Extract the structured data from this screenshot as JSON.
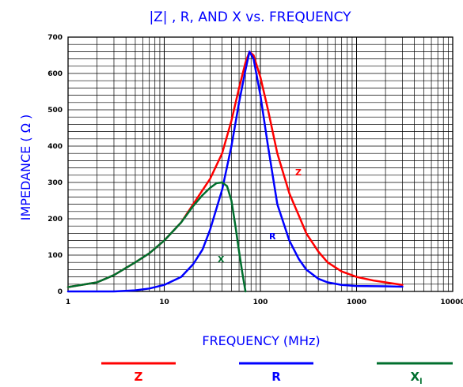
{
  "chart_data": {
    "type": "line",
    "title": "|Z| , R, AND X vs. FREQUENCY",
    "xlabel": "FREQUENCY (MHz)",
    "ylabel": "IMPEDANCE ( Ω )",
    "xscale": "log",
    "xlim": [
      1,
      10000
    ],
    "ylim": [
      0,
      700
    ],
    "x_ticks": [
      "1",
      "10",
      "100",
      "1000",
      "10000"
    ],
    "y_ticks": [
      "0",
      "100",
      "200",
      "300",
      "400",
      "500",
      "600",
      "700"
    ],
    "grid": true,
    "legend_position": "bottom",
    "series": [
      {
        "name": "Z",
        "color": "#ff0000",
        "points": [
          [
            1,
            12
          ],
          [
            2,
            25
          ],
          [
            3,
            45
          ],
          [
            5,
            80
          ],
          [
            7,
            105
          ],
          [
            10,
            140
          ],
          [
            15,
            190
          ],
          [
            20,
            240
          ],
          [
            30,
            310
          ],
          [
            40,
            380
          ],
          [
            50,
            470
          ],
          [
            60,
            560
          ],
          [
            70,
            630
          ],
          [
            77,
            660
          ],
          [
            85,
            650
          ],
          [
            100,
            590
          ],
          [
            120,
            500
          ],
          [
            150,
            380
          ],
          [
            200,
            270
          ],
          [
            250,
            210
          ],
          [
            300,
            160
          ],
          [
            400,
            110
          ],
          [
            500,
            80
          ],
          [
            700,
            55
          ],
          [
            1000,
            40
          ],
          [
            1500,
            30
          ],
          [
            2000,
            25
          ],
          [
            3000,
            18
          ]
        ]
      },
      {
        "name": "R",
        "color": "#0000ff",
        "points": [
          [
            1,
            0
          ],
          [
            3,
            0
          ],
          [
            5,
            3
          ],
          [
            7,
            8
          ],
          [
            10,
            18
          ],
          [
            15,
            40
          ],
          [
            20,
            75
          ],
          [
            25,
            115
          ],
          [
            30,
            170
          ],
          [
            40,
            280
          ],
          [
            50,
            400
          ],
          [
            60,
            520
          ],
          [
            70,
            610
          ],
          [
            77,
            660
          ],
          [
            85,
            640
          ],
          [
            100,
            540
          ],
          [
            120,
            400
          ],
          [
            150,
            240
          ],
          [
            200,
            140
          ],
          [
            250,
            90
          ],
          [
            300,
            60
          ],
          [
            400,
            35
          ],
          [
            500,
            25
          ],
          [
            700,
            18
          ],
          [
            1000,
            15
          ],
          [
            2000,
            14
          ],
          [
            3000,
            13
          ]
        ]
      },
      {
        "name": "X",
        "color": "#006f2e",
        "points": [
          [
            1,
            12
          ],
          [
            2,
            25
          ],
          [
            3,
            45
          ],
          [
            5,
            80
          ],
          [
            7,
            105
          ],
          [
            10,
            140
          ],
          [
            15,
            190
          ],
          [
            20,
            235
          ],
          [
            25,
            265
          ],
          [
            30,
            285
          ],
          [
            35,
            298
          ],
          [
            40,
            300
          ],
          [
            45,
            290
          ],
          [
            50,
            250
          ],
          [
            55,
            180
          ],
          [
            60,
            110
          ],
          [
            65,
            50
          ],
          [
            70,
            0
          ]
        ]
      }
    ],
    "annotations": [
      "Z",
      "R",
      "X"
    ]
  },
  "legend": {
    "items": [
      {
        "label": "Z",
        "color": "#ff0000"
      },
      {
        "label": "R",
        "color": "#0000ff"
      },
      {
        "label": "X",
        "subscript": "l",
        "color": "#006f2e"
      }
    ]
  }
}
